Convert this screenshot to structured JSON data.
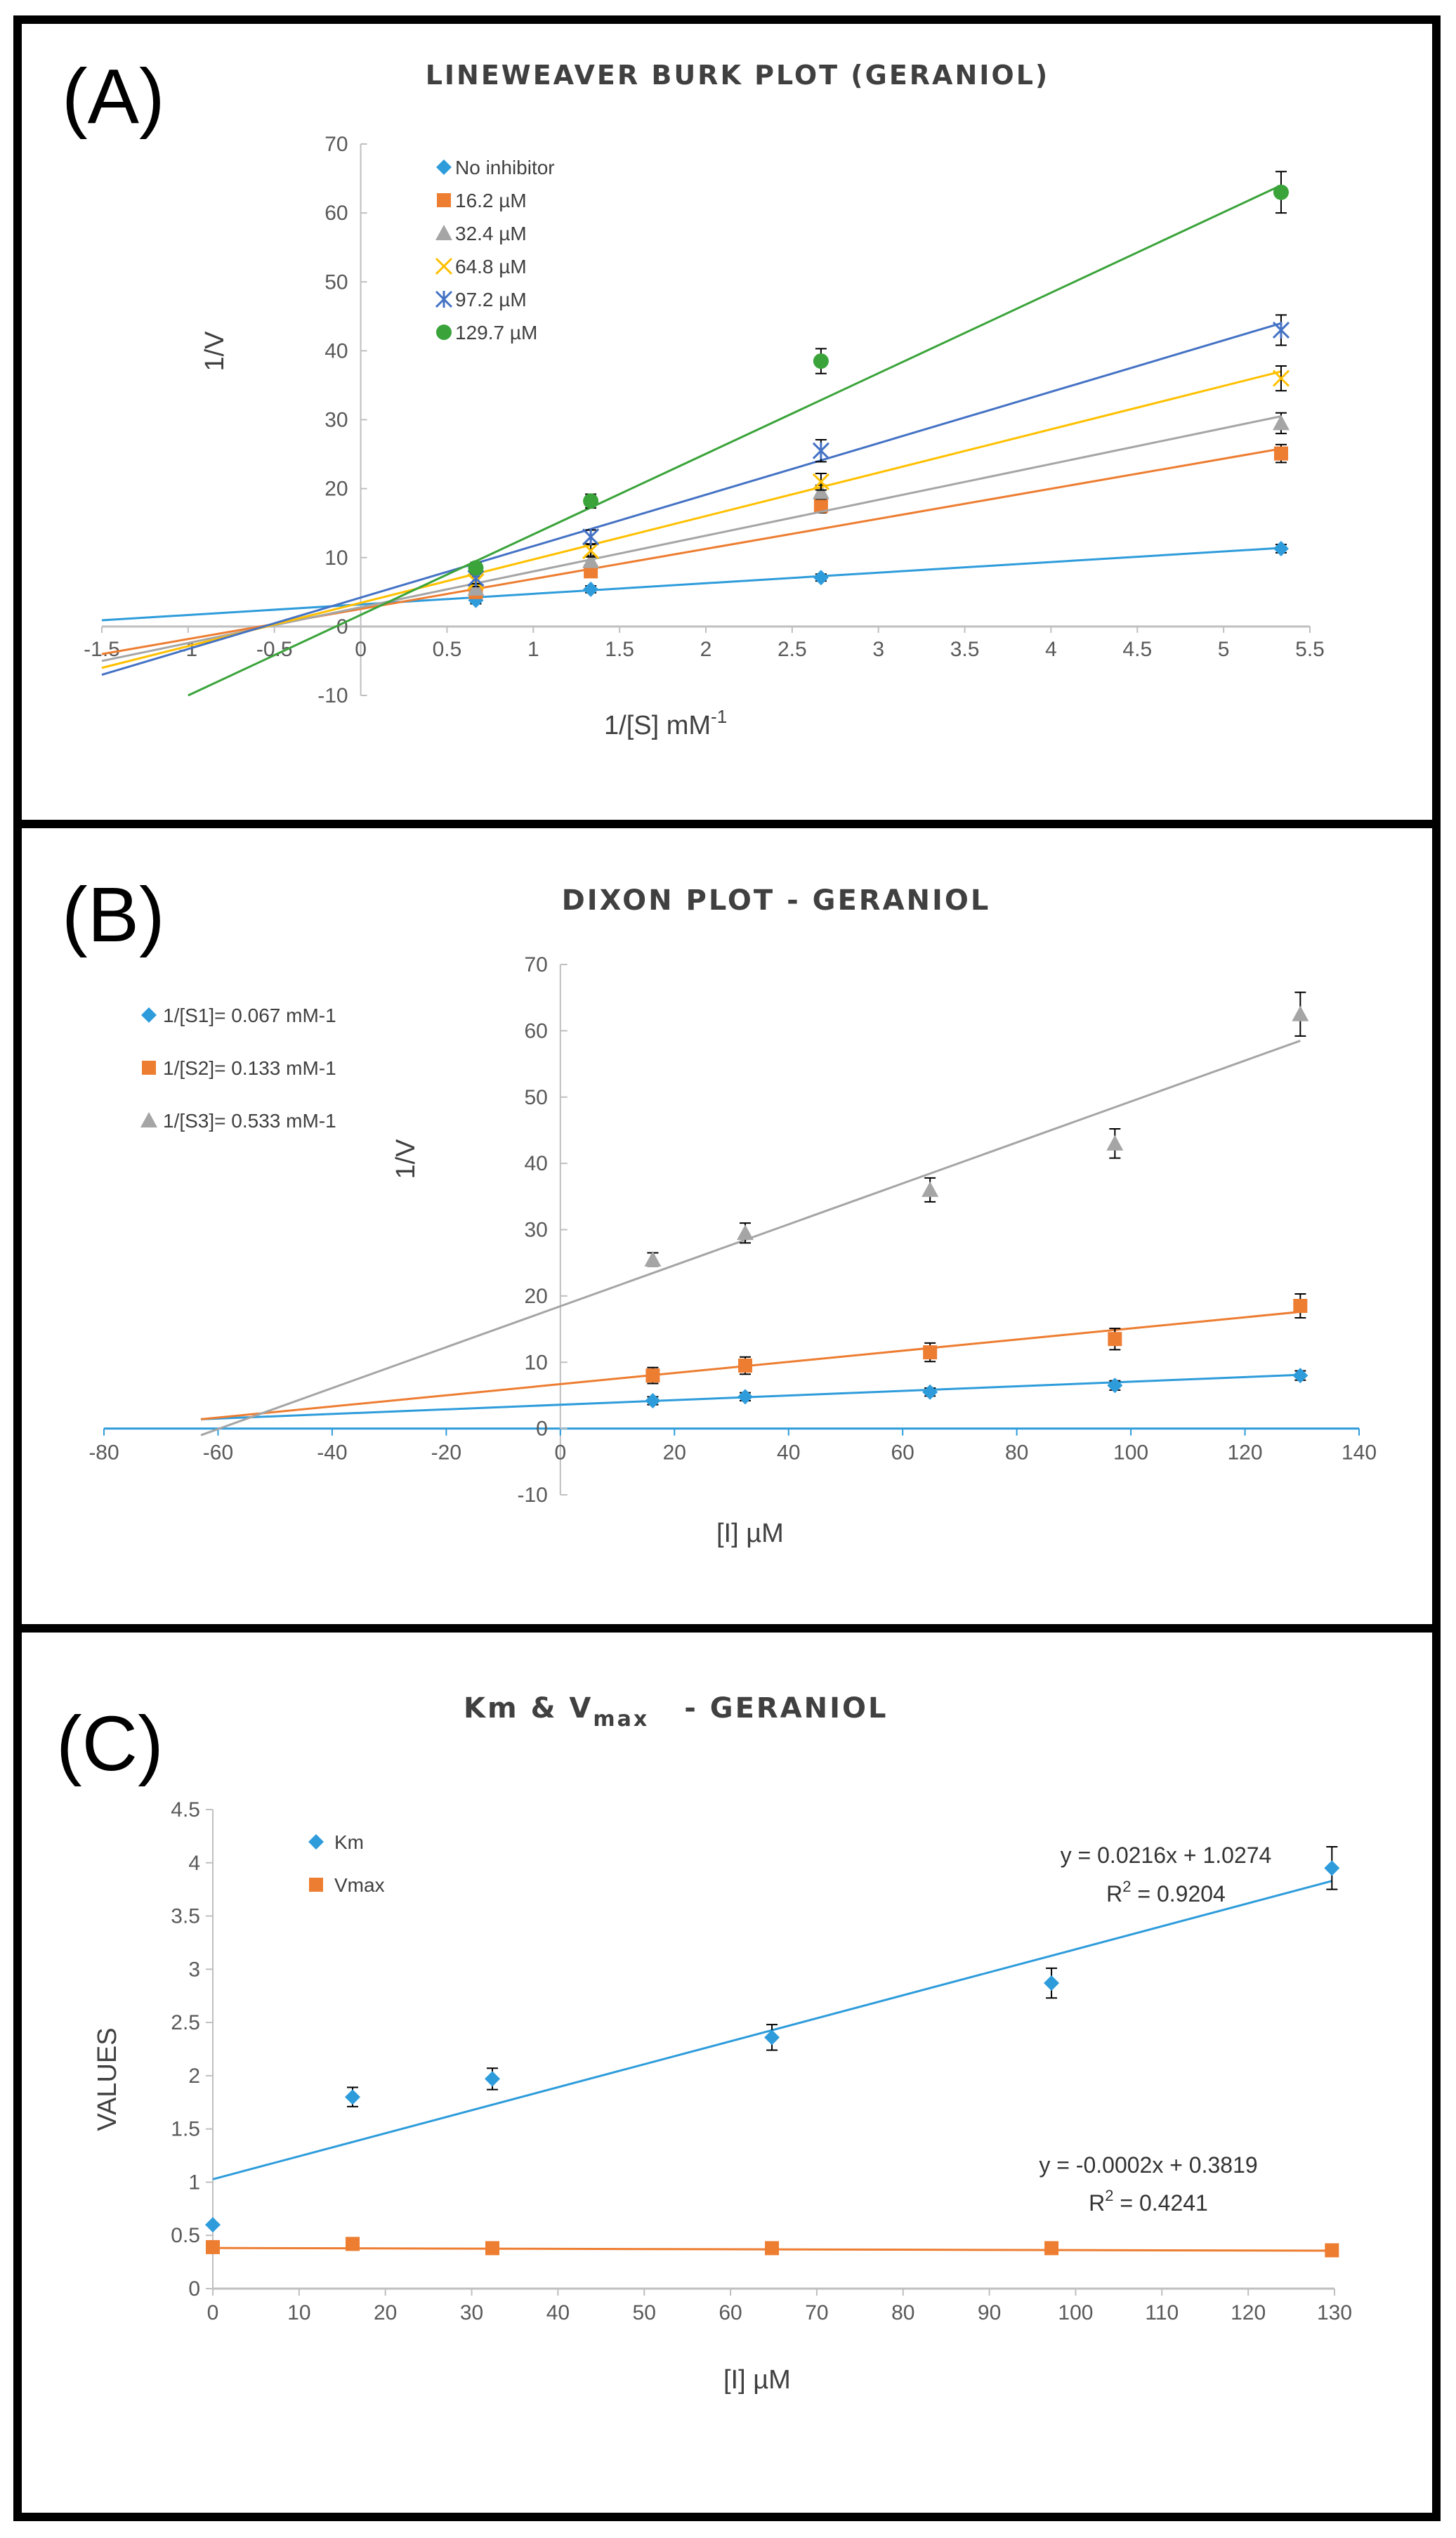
{
  "chart_data": [
    {
      "panel_label": "(A)",
      "type": "scatter",
      "title": "LINEWEAVER BURK PLOT (GERANIOL)",
      "xlabel": "1/[S] mM",
      "xlabel_superscript": "-1",
      "ylabel": "1/V",
      "xlim": [
        -1.5,
        5.5
      ],
      "ylim": [
        -10,
        70
      ],
      "x_ticks": [
        "-1.5",
        "-1",
        "-0.5",
        "0",
        "0.5",
        "1",
        "1.5",
        "2",
        "2.5",
        "3",
        "3.5",
        "4",
        "4.5",
        "5",
        "5.5"
      ],
      "x_tick_values": [
        -1.5,
        -1,
        -0.5,
        0,
        0.5,
        1,
        1.5,
        2,
        2.5,
        3,
        3.5,
        4,
        4.5,
        5,
        5.5
      ],
      "y_ticks": [
        "-10",
        "0",
        "10",
        "20",
        "30",
        "40",
        "50",
        "60",
        "70"
      ],
      "y_tick_values": [
        -10,
        0,
        10,
        20,
        30,
        40,
        50,
        60,
        70
      ],
      "legend_position": "top-left",
      "series": [
        {
          "name": "No inhibitor",
          "marker": "diamond",
          "color": "#2E9CDB",
          "x": [
            0.667,
            1.333,
            2.667,
            5.333
          ],
          "y": [
            3.8,
            5.4,
            7.1,
            11.3
          ],
          "err": [
            0.5,
            0.5,
            0.5,
            0.6
          ],
          "fit_x": [
            -1.5,
            5.333
          ],
          "fit_y": [
            0.9,
            11.4
          ]
        },
        {
          "name": "16.2 µM",
          "marker": "square",
          "color": "#ED7D31",
          "x": [
            0.667,
            1.333,
            2.667,
            5.333
          ],
          "y": [
            5.0,
            8.0,
            17.5,
            25.1
          ],
          "err": [
            0.6,
            0.8,
            1.0,
            1.3
          ],
          "fit_x": [
            -1.5,
            5.333
          ],
          "fit_y": [
            -4.0,
            25.8
          ]
        },
        {
          "name": "32.4 µM",
          "marker": "triangle",
          "color": "#A5A5A5",
          "x": [
            0.667,
            1.333,
            2.667,
            5.333
          ],
          "y": [
            5.5,
            9.5,
            19.5,
            29.5
          ],
          "err": [
            0.6,
            0.8,
            1.0,
            1.5
          ],
          "fit_x": [
            -1.5,
            5.333
          ],
          "fit_y": [
            -5.0,
            30.5
          ]
        },
        {
          "name": "64.8 µM",
          "marker": "x",
          "color": "#FFC000",
          "x": [
            0.667,
            1.333,
            2.667,
            5.333
          ],
          "y": [
            6.5,
            11.0,
            21.0,
            36.0
          ],
          "err": [
            0.7,
            0.9,
            1.2,
            1.8
          ],
          "fit_x": [
            -1.5,
            5.333
          ],
          "fit_y": [
            -6.0,
            37.0
          ]
        },
        {
          "name": "97.2 µM",
          "marker": "asterisk",
          "color": "#4472C4",
          "x": [
            0.667,
            1.333,
            2.667,
            5.333
          ],
          "y": [
            7.0,
            13.0,
            25.5,
            43.0
          ],
          "err": [
            0.8,
            1.0,
            1.6,
            2.2
          ],
          "fit_x": [
            -1.5,
            5.333
          ],
          "fit_y": [
            -7.0,
            44.0
          ]
        },
        {
          "name": "129.7 µM",
          "marker": "circle",
          "color": "#3AA43A",
          "x": [
            0.667,
            1.333,
            2.667,
            5.333
          ],
          "y": [
            8.5,
            18.2,
            38.5,
            63.0
          ],
          "err": [
            0.8,
            1.0,
            1.8,
            3.0
          ],
          "fit_x": [
            -1.0,
            5.333
          ],
          "fit_y": [
            -10.0,
            64.0
          ]
        }
      ]
    },
    {
      "panel_label": "(B)",
      "type": "scatter",
      "title": "DIXON PLOT - GERANIOL",
      "xlabel": "[I] µM",
      "ylabel": "1/V",
      "xlim": [
        -80,
        140
      ],
      "ylim": [
        -10,
        70
      ],
      "x_ticks": [
        "-80",
        "-60",
        "-40",
        "-20",
        "0",
        "20",
        "40",
        "60",
        "80",
        "100",
        "120",
        "140"
      ],
      "x_tick_values": [
        -80,
        -60,
        -40,
        -20,
        0,
        20,
        40,
        60,
        80,
        100,
        120,
        140
      ],
      "y_ticks": [
        "-10",
        "0",
        "10",
        "20",
        "30",
        "40",
        "50",
        "60",
        "70"
      ],
      "y_tick_values": [
        -10,
        0,
        10,
        20,
        30,
        40,
        50,
        60,
        70
      ],
      "legend_position": "top-left",
      "series": [
        {
          "name": "1/[S1]= 0.067 mM-1",
          "marker": "diamond",
          "color": "#2E9CDB",
          "x": [
            16.2,
            32.4,
            64.8,
            97.2,
            129.7
          ],
          "y": [
            4.2,
            4.8,
            5.5,
            6.5,
            8.0
          ],
          "err": [
            0.6,
            0.6,
            0.6,
            0.7,
            0.7
          ],
          "fit_x": [
            -63,
            129.7
          ],
          "fit_y": [
            1.4,
            8.1
          ]
        },
        {
          "name": "1/[S2]= 0.133 mM-1",
          "marker": "square",
          "color": "#ED7D31",
          "x": [
            16.2,
            32.4,
            64.8,
            97.2,
            129.7
          ],
          "y": [
            8.0,
            9.5,
            11.5,
            13.5,
            18.5
          ],
          "err": [
            1.2,
            1.3,
            1.4,
            1.6,
            1.8
          ],
          "fit_x": [
            -63,
            129.7
          ],
          "fit_y": [
            1.4,
            17.6
          ]
        },
        {
          "name": "1/[S3]= 0.533 mM-1",
          "marker": "triangle",
          "color": "#A5A5A5",
          "x": [
            16.2,
            32.4,
            64.8,
            97.2,
            129.7
          ],
          "y": [
            25.5,
            29.5,
            36.0,
            43.0,
            62.5
          ],
          "err": [
            1.0,
            1.5,
            1.8,
            2.2,
            3.3
          ],
          "fit_x": [
            -63,
            129.7
          ],
          "fit_y": [
            -1.0,
            58.5
          ]
        }
      ]
    },
    {
      "panel_label": "(C)",
      "type": "scatter",
      "title_main": "Km  & V",
      "title_sub": "max",
      "title_tail": "- GERANIOL",
      "xlabel": "[I]  µM",
      "ylabel": "VALUES",
      "xlim": [
        0,
        130
      ],
      "ylim": [
        0,
        4.5
      ],
      "x_ticks": [
        "0",
        "10",
        "20",
        "30",
        "40",
        "50",
        "60",
        "70",
        "80",
        "90",
        "100",
        "110",
        "120",
        "130"
      ],
      "x_tick_values": [
        0,
        10,
        20,
        30,
        40,
        50,
        60,
        70,
        80,
        90,
        100,
        110,
        120,
        130
      ],
      "y_ticks": [
        "0",
        "0.5",
        "1",
        "1.5",
        "2",
        "2.5",
        "3",
        "3.5",
        "4",
        "4.5"
      ],
      "y_tick_values": [
        0,
        0.5,
        1,
        1.5,
        2,
        2.5,
        3,
        3.5,
        4,
        4.5
      ],
      "legend_position": "top-left",
      "series": [
        {
          "name": "Km",
          "marker": "diamond",
          "color": "#2E9CDB",
          "x": [
            0,
            16.2,
            32.4,
            64.8,
            97.2,
            129.7
          ],
          "y": [
            0.6,
            1.8,
            1.97,
            2.36,
            2.87,
            3.95
          ],
          "err": [
            0,
            0.09,
            0.1,
            0.12,
            0.14,
            0.2
          ],
          "fit_x": [
            0,
            129.7
          ],
          "fit_y": [
            1.0274,
            3.829
          ]
        },
        {
          "name": "Vmax",
          "marker": "square",
          "color": "#ED7D31",
          "x": [
            0,
            16.2,
            32.4,
            64.8,
            97.2,
            129.7
          ],
          "y": [
            0.39,
            0.42,
            0.38,
            0.38,
            0.38,
            0.36
          ],
          "err": [
            0,
            0,
            0,
            0,
            0,
            0
          ],
          "fit_x": [
            0,
            129.7
          ],
          "fit_y": [
            0.3819,
            0.356
          ]
        }
      ],
      "annotations": [
        {
          "line1": "y = 0.0216x + 1.0274",
          "line2_prefix": "R",
          "line2_sup": "2",
          "line2_suffix": " = 0.9204"
        },
        {
          "line1": "y = -0.0002x + 0.3819",
          "line2_prefix": "R",
          "line2_sup": "2",
          "line2_suffix": " = 0.4241"
        }
      ]
    }
  ]
}
